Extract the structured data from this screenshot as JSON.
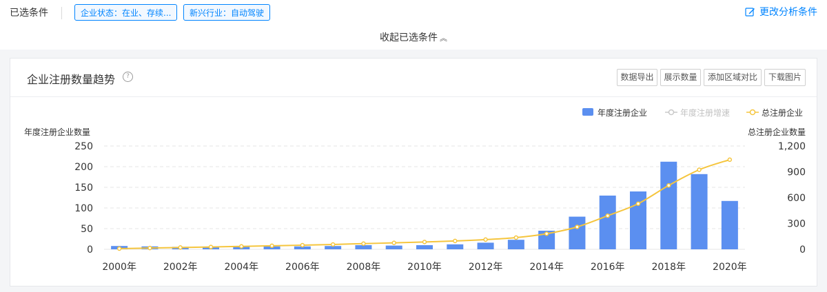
{
  "filters": {
    "label": "已选条件",
    "tags": [
      "企业状态：在业、存续...",
      "新兴行业：自动驾驶"
    ],
    "edit_label": "更改分析条件",
    "collapse_label": "收起已选条件"
  },
  "card": {
    "title": "企业注册数量趋势",
    "help_glyph": "?",
    "buttons": [
      "数据导出",
      "展示数量",
      "添加区域对比",
      "下载图片"
    ]
  },
  "colors": {
    "accent": "#0084ff",
    "bar": "#5b8ff0",
    "line": "#f5c53d",
    "growth": "#c8c8c8"
  },
  "chart_data": {
    "type": "bar+line",
    "categories": [
      "2000年",
      "2001年",
      "2002年",
      "2003年",
      "2004年",
      "2005年",
      "2006年",
      "2007年",
      "2008年",
      "2009年",
      "2010年",
      "2011年",
      "2012年",
      "2013年",
      "2014年",
      "2015年",
      "2016年",
      "2017年",
      "2018年",
      "2019年",
      "2020年"
    ],
    "x_tick_labels": [
      "2000年",
      "",
      "2002年",
      "",
      "2004年",
      "",
      "2006年",
      "",
      "2008年",
      "",
      "2010年",
      "",
      "2012年",
      "",
      "2014年",
      "",
      "2016年",
      "",
      "2018年",
      "",
      "2020年"
    ],
    "legend": [
      "年度注册企业",
      "年度注册增速",
      "总注册企业"
    ],
    "ylabel_left": "年度注册企业数量",
    "ylabel_right": "总注册企业数量",
    "ylim_left": [
      0,
      250
    ],
    "ylim_right": [
      0,
      1200
    ],
    "yticks_left": [
      "250",
      "200",
      "150",
      "100",
      "50",
      "0"
    ],
    "yticks_right": [
      "1,200",
      "900",
      "600",
      "300",
      "0"
    ],
    "series": [
      {
        "name": "年度注册企业",
        "type": "bar",
        "axis": "left",
        "values": [
          8,
          7,
          6,
          6,
          7,
          7,
          7,
          8,
          10,
          9,
          10,
          12,
          16,
          23,
          45,
          79,
          130,
          140,
          212,
          182,
          117
        ]
      },
      {
        "name": "总注册企业",
        "type": "line",
        "axis": "right",
        "values": [
          8,
          15,
          21,
          27,
          34,
          41,
          48,
          56,
          66,
          75,
          85,
          97,
          113,
          136,
          181,
          260,
          390,
          530,
          742,
          924,
          1041
        ]
      }
    ],
    "grid": true,
    "legend_position": "top-right"
  }
}
